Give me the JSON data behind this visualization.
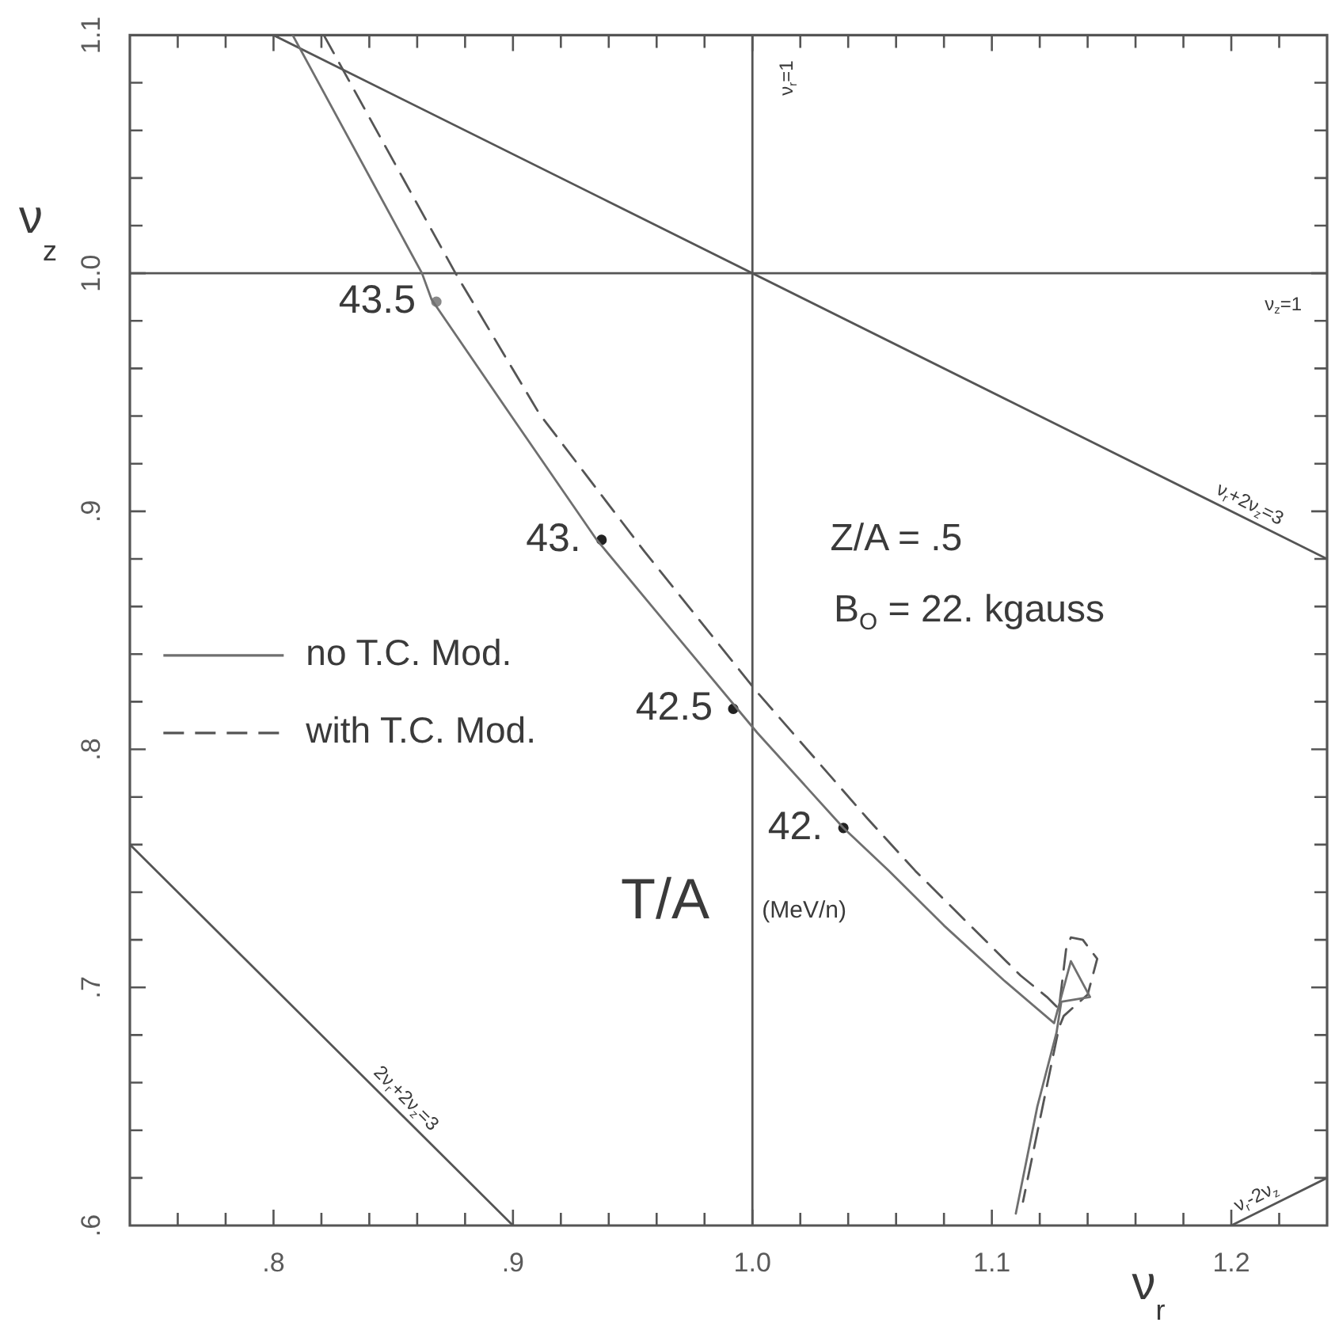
{
  "chart_data": {
    "type": "line",
    "xlabel": "ν$_{r}$",
    "ylabel": "ν$_{z}$",
    "xlim": [
      0.74,
      1.24
    ],
    "ylim": [
      0.6,
      1.1
    ],
    "xticks": [
      {
        "value": 0.76,
        "label": null
      },
      {
        "value": 0.78,
        "label": null
      },
      {
        "value": 0.8,
        "label": ".8"
      },
      {
        "value": 0.82,
        "label": null
      },
      {
        "value": 0.84,
        "label": null
      },
      {
        "value": 0.86,
        "label": null
      },
      {
        "value": 0.88,
        "label": null
      },
      {
        "value": 0.9,
        "label": ".9"
      },
      {
        "value": 0.92,
        "label": null
      },
      {
        "value": 0.94,
        "label": null
      },
      {
        "value": 0.96,
        "label": null
      },
      {
        "value": 0.98,
        "label": null
      },
      {
        "value": 1.0,
        "label": "1.0"
      },
      {
        "value": 1.02,
        "label": null
      },
      {
        "value": 1.04,
        "label": null
      },
      {
        "value": 1.06,
        "label": null
      },
      {
        "value": 1.08,
        "label": null
      },
      1.1,
      {
        "value": 1.12,
        "label": null
      },
      {
        "value": 1.14,
        "label": null
      },
      {
        "value": 1.16,
        "label": null
      },
      {
        "value": 1.18,
        "label": null
      },
      1.2,
      {
        "value": 1.22,
        "label": null
      }
    ],
    "yticks": [
      {
        "value": 0.6,
        "label": ".6"
      },
      {
        "value": 0.62,
        "label": null
      },
      {
        "value": 0.64,
        "label": null
      },
      {
        "value": 0.66,
        "label": null
      },
      {
        "value": 0.68,
        "label": null
      },
      {
        "value": 0.7,
        "label": ".7"
      },
      {
        "value": 0.72,
        "label": null
      },
      {
        "value": 0.74,
        "label": null
      },
      {
        "value": 0.76,
        "label": null
      },
      {
        "value": 0.78,
        "label": null
      },
      {
        "value": 0.8,
        "label": ".8"
      },
      {
        "value": 0.82,
        "label": null
      },
      {
        "value": 0.84,
        "label": null
      },
      {
        "value": 0.86,
        "label": null
      },
      {
        "value": 0.88,
        "label": null
      },
      {
        "value": 0.9,
        "label": ".9"
      },
      {
        "value": 0.92,
        "label": null
      },
      {
        "value": 0.94,
        "label": null
      },
      {
        "value": 0.96,
        "label": null
      },
      {
        "value": 0.98,
        "label": null
      },
      {
        "value": 1.0,
        "label": "1.0"
      },
      {
        "value": 1.02,
        "label": null
      },
      {
        "value": 1.04,
        "label": null
      },
      {
        "value": 1.06,
        "label": null
      },
      {
        "value": 1.08,
        "label": null
      },
      1.1
    ],
    "legend": "left",
    "marker": "none",
    "series": [
      {
        "name": "no T.C. Mod.",
        "line_style": "solid",
        "color": "#6f6f6f",
        "x": [
          0.808,
          0.862,
          0.866,
          0.9,
          0.935,
          0.968,
          1.002,
          1.038,
          1.057,
          1.08,
          1.105,
          1.126,
          1.133,
          1.141,
          1.129,
          1.127,
          1.119,
          1.11
        ],
        "values": [
          1.1,
          1.0,
          0.989,
          0.939,
          0.888,
          0.848,
          0.807,
          0.767,
          0.749,
          0.726,
          0.703,
          0.685,
          0.711,
          0.696,
          0.694,
          0.681,
          0.65,
          0.605
        ]
      },
      {
        "name": "with T.C. Mod.",
        "line_style": "dashed",
        "color": "#555555",
        "x": [
          0.821,
          0.876,
          0.911,
          0.955,
          1.002,
          1.048,
          1.068,
          1.09,
          1.112,
          1.123,
          1.128,
          1.131,
          1.133,
          1.138,
          1.144,
          1.14,
          1.13,
          1.128,
          1.113
        ],
        "values": [
          1.1,
          1.0,
          0.941,
          0.883,
          0.824,
          0.771,
          0.749,
          0.727,
          0.705,
          0.696,
          0.691,
          0.716,
          0.721,
          0.72,
          0.712,
          0.697,
          0.688,
          0.683,
          0.61
        ]
      },
      {
        "line_style": "solid",
        "color": "#555555",
        "x": [
          0.8,
          1.24
        ],
        "values": [
          1.1,
          0.88
        ]
      },
      {
        "line_style": "solid",
        "color": "#555555",
        "x": [
          0.74,
          0.9
        ],
        "values": [
          0.76,
          0.6
        ]
      },
      {
        "line_style": "solid",
        "color": "#555555",
        "x": [
          1.2,
          1.24
        ],
        "values": [
          0.6,
          0.62
        ]
      },
      {
        "type": "scatter",
        "marker": "circle",
        "colors": [
          "#888888",
          "#222222",
          "#222222",
          "#222222"
        ],
        "x": [
          0.868,
          0.937,
          0.992,
          1.038
        ],
        "values": [
          0.988,
          0.888,
          0.817,
          0.767
        ]
      }
    ],
    "ref_lines": [
      {
        "axis": "x",
        "value": 1.0,
        "label": "ν$_{r}$=1",
        "color": "#555555"
      },
      {
        "axis": "y",
        "value": 1.0,
        "label": "ν$_{z}$=1",
        "color": "#555555"
      }
    ],
    "annotations": [
      {
        "text": "43.5",
        "x": 0.868,
        "y": 0.988
      },
      {
        "text": "43.",
        "x": 0.937,
        "y": 0.888
      },
      {
        "text": "42.5",
        "x": 0.992,
        "y": 0.817
      },
      {
        "text": "42.",
        "x": 1.038,
        "y": 0.767
      },
      {
        "text": "ν$_{r}$+2ν$_{z}$=3",
        "x": 1.205,
        "y": 0.8975
      },
      {
        "text": "2ν$_{r}$+2ν$_{z}$=3",
        "x": 0.851,
        "y": 0.649
      },
      {
        "text": "ν$_{r}$-2ν$_{z}$",
        "x": 1.213,
        "y": 0.6065
      },
      "Z/A = .5",
      "B$_{O}$ = 22. kgauss",
      "T/A",
      "(MeV/n)"
    ]
  }
}
